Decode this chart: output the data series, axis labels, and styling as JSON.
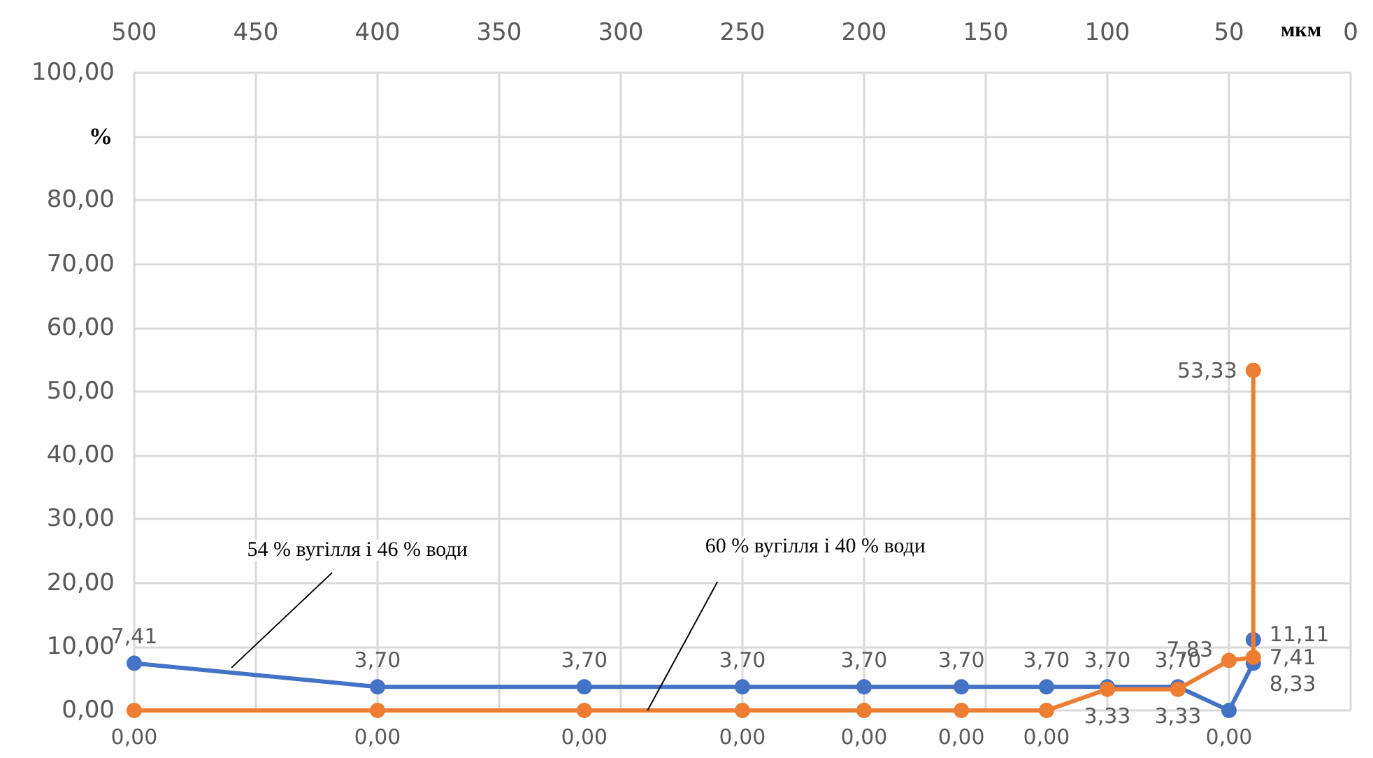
{
  "chart_data": {
    "type": "line",
    "xlabel": "мкм",
    "ylabel": "%",
    "x": [
      500,
      400,
      315,
      250,
      200,
      160,
      125,
      100,
      71,
      50,
      40,
      40
    ],
    "series": [
      {
        "color": "#4472c4",
        "values": [
          7.41,
          3.7,
          3.7,
          3.7,
          3.7,
          3.7,
          3.7,
          3.7,
          3.7,
          0,
          7.41,
          11.11
        ],
        "value_labels": [
          "7,41",
          "3,70",
          "3,70",
          "3,70",
          "3,70",
          "3,70",
          "3,70",
          "3,70",
          "3,70",
          "0,00",
          "7,41",
          "11,11"
        ]
      },
      {
        "color": "#ed7d31",
        "values": [
          0,
          0,
          0,
          0,
          0,
          0,
          0,
          3.33,
          3.33,
          7.83,
          8.33,
          53.33
        ],
        "value_labels": [
          "0,00",
          "0,00",
          "0,00",
          "0,00",
          "0,00",
          "0,00",
          "0,00",
          "3,33",
          "3,33",
          "7,83",
          "8,33",
          "53,33"
        ]
      }
    ],
    "xlim": [
      500,
      0
    ],
    "xticks": [
      500,
      450,
      400,
      350,
      300,
      250,
      200,
      150,
      100,
      50,
      0
    ],
    "ylim": [
      0,
      100
    ],
    "yticks": [
      {
        "value": 0,
        "label": "0,00"
      },
      {
        "value": 10,
        "label": "10,00"
      },
      {
        "value": 20,
        "label": "20,00"
      },
      {
        "value": 30,
        "label": "30,00"
      },
      {
        "value": 40,
        "label": "40,00"
      },
      {
        "value": 50,
        "label": "50,00"
      },
      {
        "value": 60,
        "label": "60,00"
      },
      {
        "value": 70,
        "label": "70,00"
      },
      {
        "value": 80,
        "label": "80,00"
      },
      {
        "value": 90,
        "label": null
      },
      {
        "value": 100,
        "label": "100,00"
      }
    ],
    "annotations": [
      {
        "text": "54 % вугілля і 46 % води",
        "x": 460,
        "y": 6.7
      },
      {
        "text": "60 % вугілля і 40 % води",
        "x": 289,
        "y": 0
      }
    ],
    "grid": true,
    "marker": "circle",
    "line_style": "solid"
  }
}
